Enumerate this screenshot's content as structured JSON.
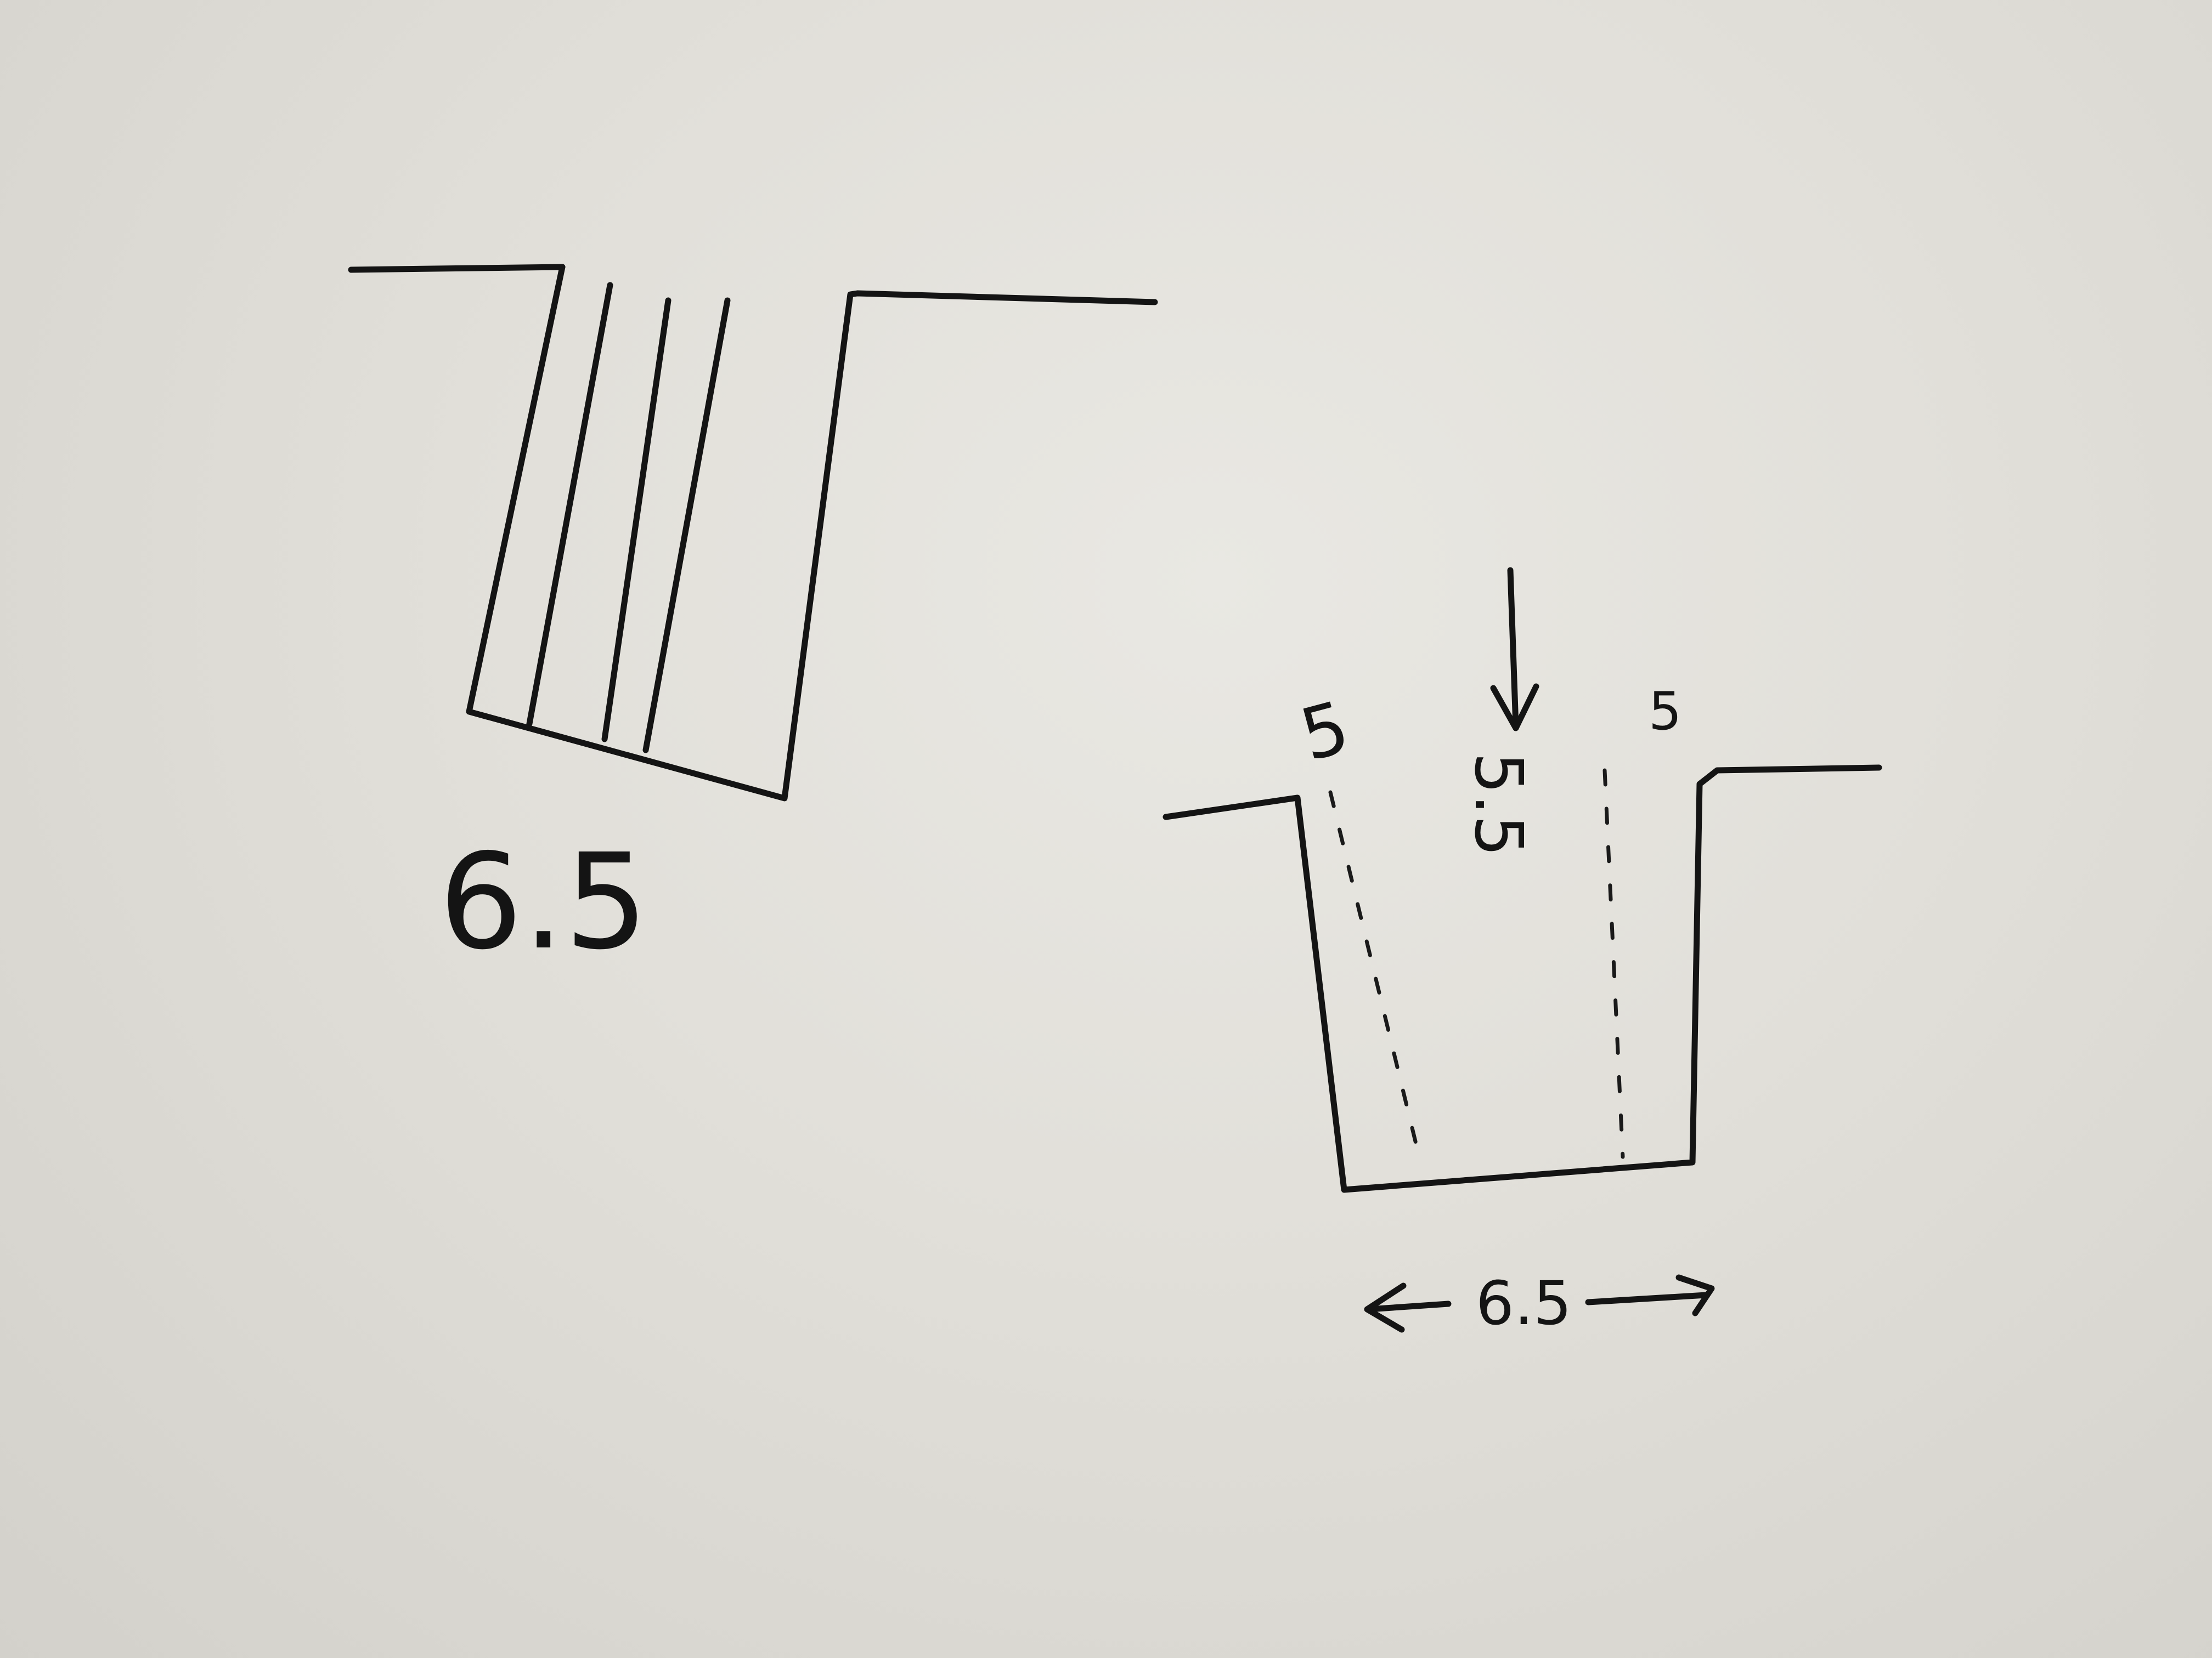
{
  "page": {
    "background_color": "#e3e1db",
    "ink_color": "#141414"
  },
  "figure_left": {
    "width_label": "6.5"
  },
  "figure_right": {
    "depth_label": "5.5",
    "left_wall_label": "5",
    "right_wall_label": "5",
    "width_label": "6.5"
  }
}
